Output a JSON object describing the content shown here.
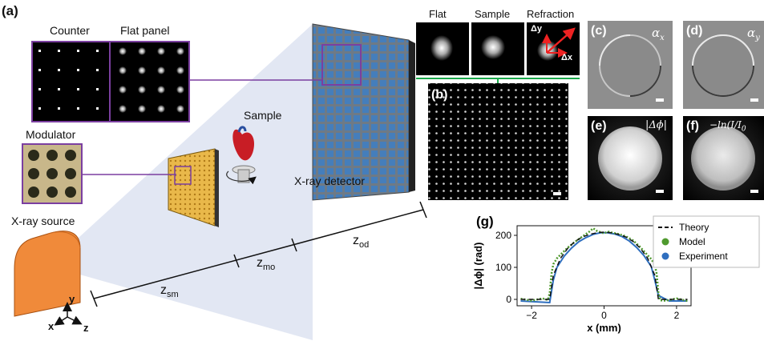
{
  "panel_a": {
    "letter": "(a)",
    "counter_label": "Counter",
    "flat_panel_label": "Flat panel",
    "modulator_label": "Modulator",
    "sample_label": "Sample",
    "source_label": "X-ray source",
    "detector_label": "X-ray detector",
    "z_sm": "z",
    "z_sm_sub": "sm",
    "z_mo": "z",
    "z_mo_sub": "mo",
    "z_od": "z",
    "z_od_sub": "od",
    "axis_x": "x",
    "axis_y": "y",
    "axis_z": "z"
  },
  "insets": {
    "flat": "Flat",
    "sample": "Sample",
    "refraction": "Refraction",
    "dy": "Δy",
    "dx": "Δx"
  },
  "panel_b": {
    "letter": "(b)"
  },
  "panel_c": {
    "letter": "(c)",
    "symbol": "α",
    "sub": "x"
  },
  "panel_d": {
    "letter": "(d)",
    "symbol": "α",
    "sub": "y"
  },
  "panel_e": {
    "letter": "(e)",
    "symbol": "|Δϕ|"
  },
  "panel_f": {
    "letter": "(f)",
    "symbol": "−ln(I/I",
    "sub": "0"
  },
  "colors": {
    "source": "#f08a3a",
    "modulator": "#e9b84a",
    "detector_blue": "#3e7fc4",
    "purple": "#7b3fa0",
    "green_link": "#1aa84a",
    "model": "#4f9a2e",
    "experiment": "#2f6fbf"
  },
  "chart_data": {
    "type": "line",
    "letter": "(g)",
    "xlabel": "x (mm)",
    "ylabel": "|Δϕ| (rad)",
    "xlim": [
      -2.4,
      2.4
    ],
    "ylim": [
      -20,
      230
    ],
    "xticks": [
      -2,
      0,
      2
    ],
    "yticks": [
      0,
      100,
      200
    ],
    "legend_position": "top-right",
    "series": [
      {
        "name": "Theory",
        "style": "dashed",
        "color": "#111111",
        "x": [
          -2.3,
          -1.5,
          -1.5,
          -1.4,
          -1.2,
          -1.0,
          -0.8,
          -0.6,
          -0.4,
          -0.2,
          0,
          0.2,
          0.4,
          0.6,
          0.8,
          1.0,
          1.2,
          1.4,
          1.5,
          1.5,
          2.3
        ],
        "y": [
          0,
          0,
          0,
          75,
          129,
          160,
          181,
          195,
          203,
          208,
          210,
          208,
          203,
          195,
          181,
          160,
          129,
          75,
          0,
          0,
          0
        ]
      },
      {
        "name": "Model",
        "style": "dotted",
        "color": "#4f9a2e",
        "x": [
          -2.3,
          -2.0,
          -1.7,
          -1.55,
          -1.5,
          -1.45,
          -1.4,
          -1.3,
          -1.2,
          -1.0,
          -0.8,
          -0.6,
          -0.4,
          -0.3,
          -0.2,
          -0.1,
          0,
          0.1,
          0.2,
          0.4,
          0.6,
          0.8,
          1.0,
          1.2,
          1.3,
          1.4,
          1.45,
          1.5,
          1.55,
          1.7,
          2.0,
          2.3
        ],
        "y": [
          2,
          -4,
          3,
          -2,
          20,
          80,
          110,
          128,
          140,
          162,
          180,
          196,
          212,
          222,
          214,
          210,
          206,
          212,
          209,
          204,
          197,
          184,
          163,
          138,
          126,
          108,
          80,
          20,
          -3,
          -4,
          3,
          -5
        ]
      },
      {
        "name": "Experiment",
        "style": "solid",
        "color": "#2f6fbf",
        "x": [
          -2.3,
          -1.8,
          -1.5,
          -1.4,
          -1.3,
          -1.1,
          -0.9,
          -0.7,
          -0.5,
          -0.3,
          -0.1,
          0.1,
          0.3,
          0.5,
          0.7,
          0.9,
          1.1,
          1.3,
          1.4,
          1.5,
          1.8,
          2.3
        ],
        "y": [
          -5,
          -8,
          -10,
          60,
          100,
          135,
          160,
          180,
          193,
          203,
          208,
          208,
          204,
          196,
          182,
          162,
          137,
          103,
          60,
          12,
          -5,
          -5
        ]
      }
    ]
  }
}
